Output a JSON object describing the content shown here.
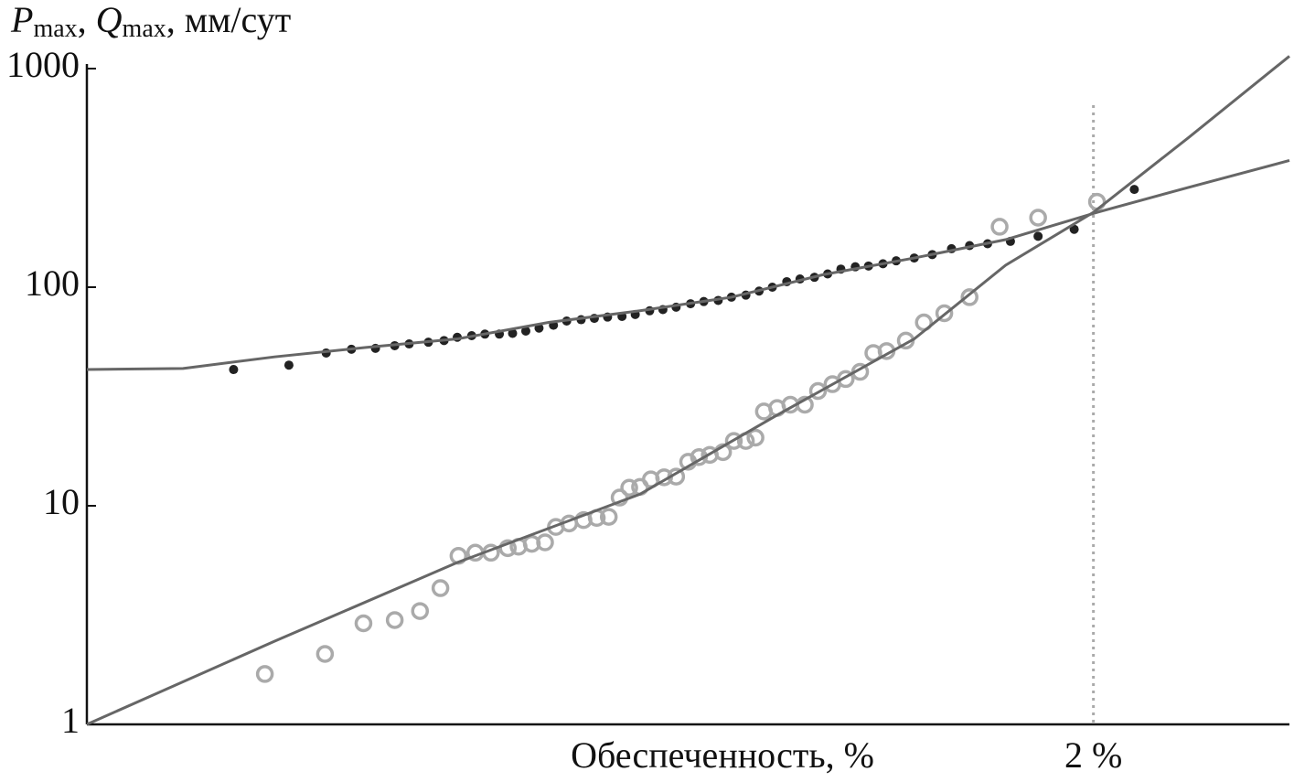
{
  "chart_data": {
    "type": "scatter",
    "ylabel": [
      "P",
      "max",
      ", ",
      "Q",
      "max",
      ", мм/сут"
    ],
    "xlabel": "Обеспеченность, %",
    "xlim": [
      0,
      1
    ],
    "xticks": [
      {
        "value": 0.837,
        "label": "2 %"
      }
    ],
    "ylim": [
      1,
      1000
    ],
    "yticks": [
      1,
      10,
      100,
      1000
    ],
    "log_y": true,
    "series": [
      {
        "type": "scatter",
        "marker": "dot",
        "color": "#222",
        "x": [
          0.122,
          0.168,
          0.199,
          0.22,
          0.24,
          0.256,
          0.268,
          0.284,
          0.297,
          0.308,
          0.32,
          0.331,
          0.343,
          0.354,
          0.365,
          0.376,
          0.388,
          0.399,
          0.411,
          0.422,
          0.433,
          0.445,
          0.456,
          0.468,
          0.479,
          0.49,
          0.502,
          0.513,
          0.525,
          0.536,
          0.548,
          0.559,
          0.57,
          0.582,
          0.593,
          0.605,
          0.616,
          0.627,
          0.639,
          0.65,
          0.662,
          0.673,
          0.688,
          0.703,
          0.719,
          0.734,
          0.749,
          0.768,
          0.791,
          0.821,
          0.871
        ],
        "values": [
          42,
          44,
          50,
          52,
          52.5,
          54,
          55,
          56,
          57,
          59,
          60,
          61,
          61,
          61.5,
          63,
          65,
          67,
          70,
          71,
          72,
          73,
          73.5,
          75,
          78,
          79,
          81,
          84,
          86,
          87,
          90,
          92,
          96,
          100,
          106,
          109,
          111,
          115,
          121,
          124,
          125,
          128,
          132,
          136,
          141,
          150,
          155,
          158,
          162,
          171,
          184,
          280
        ]
      },
      {
        "type": "scatter",
        "marker": "circle",
        "color": "#aaa",
        "x": [
          0.148,
          0.198,
          0.23,
          0.256,
          0.277,
          0.294,
          0.309,
          0.323,
          0.336,
          0.35,
          0.359,
          0.37,
          0.381,
          0.39,
          0.401,
          0.413,
          0.424,
          0.434,
          0.443,
          0.451,
          0.46,
          0.469,
          0.48,
          0.49,
          0.5,
          0.509,
          0.518,
          0.529,
          0.538,
          0.548,
          0.556,
          0.563,
          0.574,
          0.585,
          0.597,
          0.608,
          0.62,
          0.631,
          0.643,
          0.654,
          0.665,
          0.681,
          0.696,
          0.713,
          0.734,
          0.759,
          0.791,
          0.84
        ],
        "values": [
          1.7,
          2.1,
          2.9,
          3.0,
          3.3,
          4.2,
          5.9,
          6.1,
          6.1,
          6.4,
          6.5,
          6.7,
          6.8,
          8.0,
          8.3,
          8.6,
          8.8,
          8.9,
          10.9,
          12.1,
          12.2,
          13.2,
          13.5,
          13.6,
          15.9,
          16.7,
          17.1,
          17.6,
          19.8,
          19.8,
          20.5,
          27,
          28,
          29,
          29,
          33.5,
          36,
          38,
          41,
          50,
          51,
          57,
          69,
          76,
          90,
          189,
          208,
          246
        ]
      },
      {
        "type": "line",
        "color": "#666",
        "x": [
          0,
          0.08,
          0.156,
          0.232,
          0.308,
          0.384,
          0.46,
          0.536,
          0.612,
          0.688,
          0.764,
          0.84,
          0.916,
          1
        ],
        "values": [
          42,
          42.5,
          48,
          53,
          58,
          69,
          78,
          90,
          114,
          136,
          165,
          220,
          286,
          380
        ]
      },
      {
        "type": "line",
        "color": "#666",
        "x": [
          0,
          0.156,
          0.308,
          0.46,
          0.574,
          0.688,
          0.764,
          0.837,
          0.916,
          1
        ],
        "values": [
          1,
          2.4,
          5.5,
          11.3,
          26,
          58,
          126,
          220,
          483,
          1140
        ]
      }
    ]
  }
}
